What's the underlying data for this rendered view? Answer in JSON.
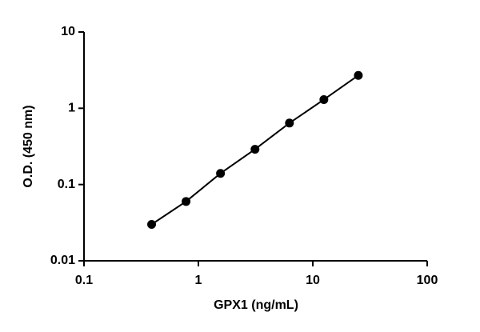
{
  "chart_data": {
    "type": "line",
    "x_label": "GPX1 (ng/mL)",
    "y_label": "O.D. (450 nm)",
    "x": [
      0.39,
      0.78,
      1.56,
      3.125,
      6.25,
      12.5,
      25
    ],
    "series": [
      {
        "color": "#000000",
        "values": [
          0.03,
          0.06,
          0.14,
          0.29,
          0.64,
          1.3,
          2.7
        ]
      }
    ],
    "xlim": [
      0.1,
      100
    ],
    "xticks": [
      0.1,
      1,
      10,
      100
    ],
    "ylim": [
      0.01,
      10
    ],
    "yticks": [
      0.01,
      0.1,
      1,
      10
    ],
    "xscale": "log",
    "yscale": "log",
    "markers": true
  }
}
